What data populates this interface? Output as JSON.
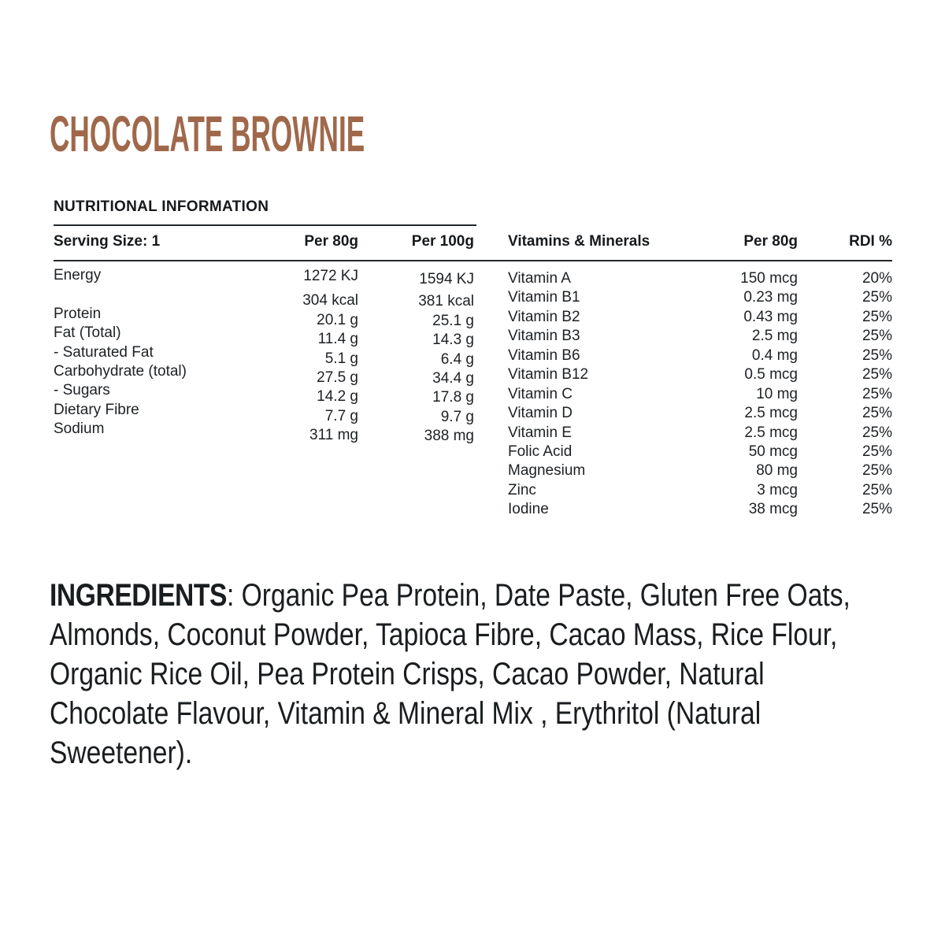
{
  "title": "CHOCOLATE BROWNIE",
  "colors": {
    "title": "#a0684a",
    "text": "#1d2124",
    "rule": "#22272b"
  },
  "nutrition": {
    "section_heading": "NUTRITIONAL INFORMATION",
    "serving_header": "Serving Size: 1",
    "col_per80": "Per 80g",
    "col_per100": "Per 100g",
    "labels": [
      "Energy",
      "",
      "Protein",
      "Fat (Total)",
      "- Saturated Fat",
      "Carbohydrate (total)",
      "- Sugars",
      "Dietary Fibre",
      "Sodium"
    ],
    "per80": [
      "1272 KJ",
      "304 kcal",
      "20.1 g",
      "11.4 g",
      "5.1 g",
      "27.5 g",
      "14.2 g",
      "7.7 g",
      "311 mg"
    ],
    "per100": [
      "1594 KJ",
      "381 kcal",
      "25.1 g",
      "14.3 g",
      "6.4 g",
      "34.4 g",
      "17.8 g",
      "9.7 g",
      "388 mg"
    ]
  },
  "vitamins": {
    "col_name": "Vitamins & Minerals",
    "col_per80": "Per 80g",
    "col_rdi": "RDI %",
    "rows": [
      {
        "name": "Vitamin A",
        "per80": "150 mcg",
        "rdi": "20%"
      },
      {
        "name": "Vitamin B1",
        "per80": "0.23 mg",
        "rdi": "25%"
      },
      {
        "name": "Vitamin B2",
        "per80": "0.43 mg",
        "rdi": "25%"
      },
      {
        "name": "Vitamin B3",
        "per80": "2.5 mg",
        "rdi": "25%"
      },
      {
        "name": "Vitamin B6",
        "per80": "0.4 mg",
        "rdi": "25%"
      },
      {
        "name": "Vitamin B12",
        "per80": "0.5 mcg",
        "rdi": "25%"
      },
      {
        "name": "Vitamin C",
        "per80": "10 mg",
        "rdi": "25%"
      },
      {
        "name": "Vitamin D",
        "per80": "2.5 mcg",
        "rdi": "25%"
      },
      {
        "name": "Vitamin E",
        "per80": "2.5 mcg",
        "rdi": "25%"
      },
      {
        "name": "Folic Acid",
        "per80": "50 mcg",
        "rdi": "25%"
      },
      {
        "name": "Magnesium",
        "per80": "80 mg",
        "rdi": "25%"
      },
      {
        "name": "Zinc",
        "per80": "3 mcg",
        "rdi": "25%"
      },
      {
        "name": "Iodine",
        "per80": "38 mcg",
        "rdi": "25%"
      }
    ]
  },
  "ingredients": {
    "label": "INGREDIENTS",
    "text": ": Organic Pea Protein, Date Paste, Gluten Free Oats, Almonds, Coconut Powder, Tapioca Fibre, Cacao Mass, Rice Flour, Organic Rice Oil, Pea Protein Crisps, Cacao Powder, Natural Chocolate Flavour, Vitamin & Mineral Mix , Erythritol (Natural Sweetener)."
  }
}
